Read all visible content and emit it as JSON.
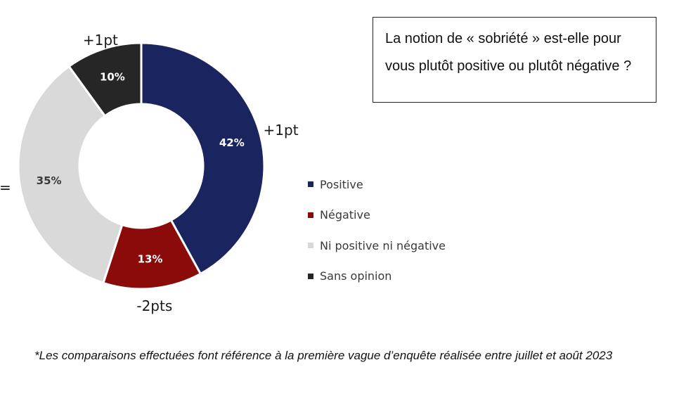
{
  "question": "La notion de « sobriété » est-elle pour vous plutôt positive ou plutôt négative ?",
  "footnote": "*Les comparaisons effectuées font référence à la première vague d’enquête réalisée entre juillet et août 2023",
  "chart_data": {
    "type": "pie",
    "donut": true,
    "title": "",
    "legend_position": "right",
    "series": [
      {
        "name": "Positive",
        "value": 42,
        "label": "42%",
        "change": "+1pt",
        "color": "#1a2560",
        "text_color": "#ffffff"
      },
      {
        "name": "Négative",
        "value": 13,
        "label": "13%",
        "change": "-2pts",
        "color": "#8b0a0a",
        "text_color": "#ffffff"
      },
      {
        "name": "Ni positive ni négative",
        "value": 35,
        "label": "35%",
        "change": "=",
        "color": "#d9d9d9",
        "text_color": "#3a3a3a"
      },
      {
        "name": "Sans opinion",
        "value": 10,
        "label": "10%",
        "change": "+1pt",
        "color": "#262626",
        "text_color": "#ffffff"
      }
    ]
  }
}
